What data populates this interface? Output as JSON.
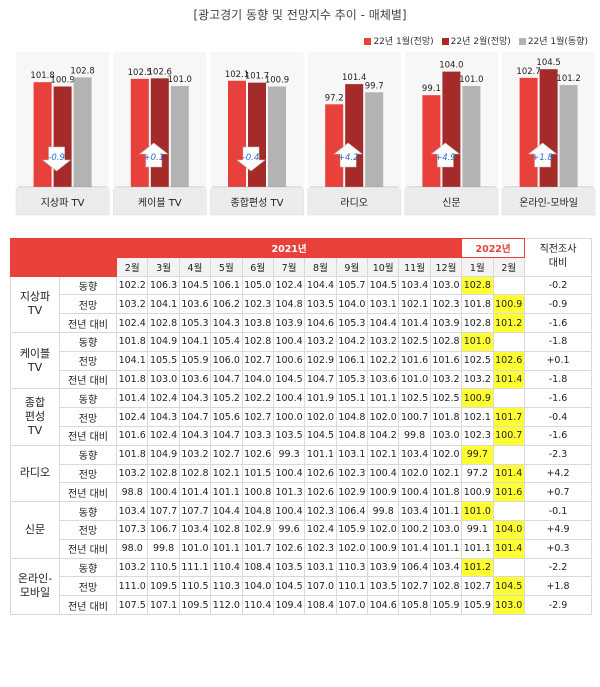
{
  "title": "[광고경기 동향 및 전망지수 추이 - 매체별]",
  "legend": [
    {
      "label": "22년 1월(전망)",
      "color": "#e8403a"
    },
    {
      "label": "22년 2월(전망)",
      "color": "#a52a2a"
    },
    {
      "label": "22년 1월(동향)",
      "color": "#b3b3b3"
    }
  ],
  "chart_data": [
    {
      "type": "bar",
      "title": "지상파 TV",
      "categories": [
        "22년 1월(전망)",
        "22년 2월(전망)",
        "22년 1월(동향)"
      ],
      "values": [
        101.8,
        100.9,
        102.8
      ],
      "change": "-0.9",
      "direction": "down"
    },
    {
      "type": "bar",
      "title": "케이블 TV",
      "categories": [
        "22년 1월(전망)",
        "22년 2월(전망)",
        "22년 1월(동향)"
      ],
      "values": [
        102.5,
        102.6,
        101.0
      ],
      "change": "+0.1",
      "direction": "up"
    },
    {
      "type": "bar",
      "title": "종합편성 TV",
      "categories": [
        "22년 1월(전망)",
        "22년 2월(전망)",
        "22년 1월(동향)"
      ],
      "values": [
        102.1,
        101.7,
        100.9
      ],
      "change": "-0.4",
      "direction": "down"
    },
    {
      "type": "bar",
      "title": "라디오",
      "categories": [
        "22년 1월(전망)",
        "22년 2월(전망)",
        "22년 1월(동향)"
      ],
      "values": [
        97.2,
        101.4,
        99.7
      ],
      "change": "+4.2",
      "direction": "up"
    },
    {
      "type": "bar",
      "title": "신문",
      "categories": [
        "22년 1월(전망)",
        "22년 2월(전망)",
        "22년 1월(동향)"
      ],
      "values": [
        99.1,
        104.0,
        101.0
      ],
      "change": "+4.9",
      "direction": "up"
    },
    {
      "type": "bar",
      "title": "온라인-모바일",
      "categories": [
        "22년 1월(전망)",
        "22년 2월(전망)",
        "22년 1월(동향)"
      ],
      "values": [
        102.7,
        104.5,
        101.2
      ],
      "change": "+1.8",
      "direction": "up"
    }
  ],
  "table": {
    "year_2021": "2021년",
    "year_2022": "2022년",
    "last_col": [
      "직전조사",
      "대비"
    ],
    "months_2021": [
      "2월",
      "3월",
      "4월",
      "5월",
      "6월",
      "7월",
      "8월",
      "9월",
      "10월",
      "11월",
      "12월"
    ],
    "months_2022": [
      "1월",
      "2월"
    ],
    "groups": [
      {
        "name": [
          "지상파",
          "TV"
        ],
        "rows": [
          {
            "label": "동향",
            "v2021": [
              "102.2",
              "106.3",
              "104.5",
              "106.1",
              "105.0",
              "102.4",
              "104.4",
              "105.7",
              "104.5",
              "103.4",
              "103.0"
            ],
            "v2022": [
              "102.8",
              ""
            ],
            "last": "-0.2"
          },
          {
            "label": "전망",
            "v2021": [
              "103.2",
              "104.1",
              "103.6",
              "106.2",
              "102.3",
              "104.8",
              "103.5",
              "104.0",
              "103.1",
              "102.1",
              "102.3"
            ],
            "v2022": [
              "101.8",
              "100.9"
            ],
            "last": "-0.9"
          },
          {
            "label": "전년 대비",
            "v2021": [
              "102.4",
              "102.8",
              "105.3",
              "104.3",
              "103.8",
              "103.9",
              "104.6",
              "105.3",
              "104.4",
              "101.4",
              "103.9"
            ],
            "v2022": [
              "102.8",
              "101.2"
            ],
            "last": "-1.6"
          }
        ]
      },
      {
        "name": [
          "케이블",
          "TV"
        ],
        "rows": [
          {
            "label": "동향",
            "v2021": [
              "101.8",
              "104.9",
              "104.1",
              "105.4",
              "102.8",
              "100.4",
              "103.2",
              "104.2",
              "103.2",
              "102.5",
              "102.8"
            ],
            "v2022": [
              "101.0",
              ""
            ],
            "last": "-1.8"
          },
          {
            "label": "전망",
            "v2021": [
              "104.1",
              "105.5",
              "105.9",
              "106.0",
              "102.7",
              "100.6",
              "102.9",
              "106.1",
              "102.2",
              "101.6",
              "101.6"
            ],
            "v2022": [
              "102.5",
              "102.6"
            ],
            "last": "+0.1"
          },
          {
            "label": "전년 대비",
            "v2021": [
              "101.8",
              "103.0",
              "103.6",
              "104.7",
              "104.0",
              "104.5",
              "104.7",
              "105.3",
              "103.6",
              "101.0",
              "103.2"
            ],
            "v2022": [
              "103.2",
              "101.4"
            ],
            "last": "-1.8"
          }
        ]
      },
      {
        "name": [
          "종합",
          "편성",
          "TV"
        ],
        "rows": [
          {
            "label": "동향",
            "v2021": [
              "101.4",
              "102.4",
              "104.3",
              "105.2",
              "102.2",
              "100.4",
              "101.9",
              "105.1",
              "101.1",
              "102.5",
              "102.5"
            ],
            "v2022": [
              "100.9",
              ""
            ],
            "last": "-1.6"
          },
          {
            "label": "전망",
            "v2021": [
              "102.4",
              "104.3",
              "104.7",
              "105.6",
              "102.7",
              "100.0",
              "102.0",
              "104.8",
              "102.0",
              "100.7",
              "101.8"
            ],
            "v2022": [
              "102.1",
              "101.7"
            ],
            "last": "-0.4"
          },
          {
            "label": "전년 대비",
            "v2021": [
              "101.6",
              "102.4",
              "104.3",
              "104.7",
              "103.3",
              "103.5",
              "104.5",
              "104.8",
              "104.2",
              "99.8",
              "103.0"
            ],
            "v2022": [
              "102.3",
              "100.7"
            ],
            "last": "-1.6"
          }
        ]
      },
      {
        "name": [
          "라디오"
        ],
        "rows": [
          {
            "label": "동향",
            "v2021": [
              "101.8",
              "104.9",
              "103.2",
              "102.7",
              "102.6",
              "99.3",
              "101.1",
              "103.1",
              "102.1",
              "103.4",
              "102.0"
            ],
            "v2022": [
              "99.7",
              ""
            ],
            "last": "-2.3"
          },
          {
            "label": "전망",
            "v2021": [
              "103.2",
              "102.8",
              "102.8",
              "102.1",
              "101.5",
              "100.4",
              "102.6",
              "102.3",
              "100.4",
              "102.0",
              "102.1"
            ],
            "v2022": [
              "97.2",
              "101.4"
            ],
            "last": "+4.2"
          },
          {
            "label": "전년 대비",
            "v2021": [
              "98.8",
              "100.4",
              "101.4",
              "101.1",
              "100.8",
              "101.3",
              "102.6",
              "102.9",
              "100.9",
              "100.4",
              "101.8"
            ],
            "v2022": [
              "100.9",
              "101.6"
            ],
            "last": "+0.7"
          }
        ]
      },
      {
        "name": [
          "신문"
        ],
        "rows": [
          {
            "label": "동향",
            "v2021": [
              "103.4",
              "107.7",
              "107.7",
              "104.4",
              "104.8",
              "100.4",
              "102.3",
              "106.4",
              "99.8",
              "103.4",
              "101.1"
            ],
            "v2022": [
              "101.0",
              ""
            ],
            "last": "-0.1"
          },
          {
            "label": "전망",
            "v2021": [
              "107.3",
              "106.7",
              "103.4",
              "102.8",
              "102.9",
              "99.6",
              "102.4",
              "105.9",
              "102.0",
              "100.2",
              "103.0"
            ],
            "v2022": [
              "99.1",
              "104.0"
            ],
            "last": "+4.9"
          },
          {
            "label": "전년 대비",
            "v2021": [
              "98.0",
              "99.8",
              "101.0",
              "101.1",
              "101.7",
              "102.6",
              "102.3",
              "102.0",
              "100.9",
              "101.4",
              "101.1"
            ],
            "v2022": [
              "101.1",
              "101.4"
            ],
            "last": "+0.3"
          }
        ]
      },
      {
        "name": [
          "온라인-",
          "모바일"
        ],
        "rows": [
          {
            "label": "동향",
            "v2021": [
              "103.2",
              "110.5",
              "111.1",
              "110.4",
              "108.4",
              "103.5",
              "103.1",
              "110.3",
              "103.9",
              "106.4",
              "103.4"
            ],
            "v2022": [
              "101.2",
              ""
            ],
            "last": "-2.2"
          },
          {
            "label": "전망",
            "v2021": [
              "111.0",
              "109.5",
              "110.5",
              "110.3",
              "104.0",
              "104.5",
              "107.0",
              "110.1",
              "103.5",
              "102.7",
              "102.8"
            ],
            "v2022": [
              "102.7",
              "104.5"
            ],
            "last": "+1.8"
          },
          {
            "label": "전년 대비",
            "v2021": [
              "107.5",
              "107.1",
              "109.5",
              "112.0",
              "110.4",
              "109.4",
              "108.4",
              "107.0",
              "104.6",
              "105.8",
              "105.9"
            ],
            "v2022": [
              "105.9",
              "103.0"
            ],
            "last": "-2.9"
          }
        ]
      }
    ]
  }
}
